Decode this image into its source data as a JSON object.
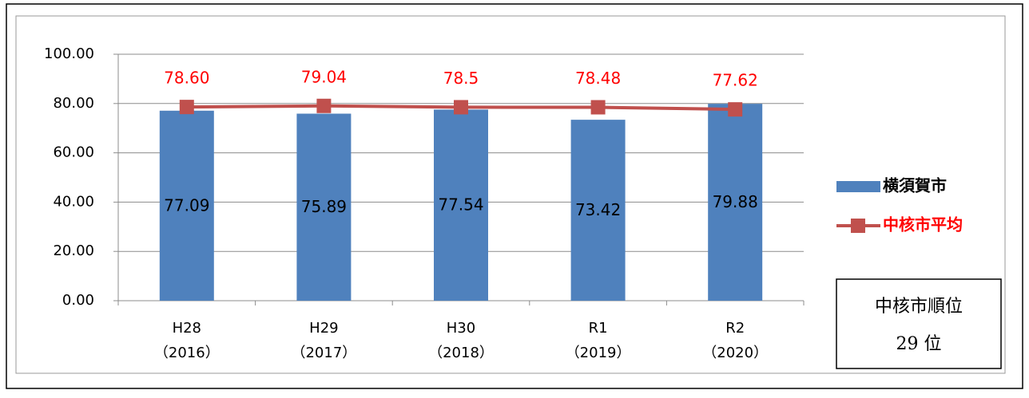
{
  "chart_data": {
    "type": "bar",
    "categories": [
      [
        "H28",
        "（2016）"
      ],
      [
        "H29",
        "（2017）"
      ],
      [
        "H30",
        "（2018）"
      ],
      [
        "R1",
        "（2019）"
      ],
      [
        "R2",
        "（2020）"
      ]
    ],
    "series": [
      {
        "name": "横須賀市",
        "type": "bar",
        "color": "#4f81bd",
        "values": [
          77.09,
          75.89,
          77.54,
          73.42,
          79.88
        ]
      },
      {
        "name": "中核市平均",
        "type": "line",
        "color": "#c0504d",
        "label_color": "#ff0000",
        "values": [
          78.6,
          79.04,
          78.5,
          78.48,
          77.62
        ],
        "value_labels": [
          "78.60",
          "79.04",
          "78.5",
          "78.48",
          "77.62"
        ]
      }
    ],
    "ylim": [
      0,
      100
    ],
    "yticks": [
      {
        "value": 0,
        "label": "0.00"
      },
      {
        "value": 20,
        "label": "20.00"
      },
      {
        "value": 40,
        "label": "40.00"
      },
      {
        "value": 60,
        "label": "60.00"
      },
      {
        "value": 80,
        "label": "80.00"
      },
      {
        "value": 100,
        "label": "100.00"
      }
    ],
    "grid": true,
    "legend": "right",
    "annotations": [
      "中核市順位",
      "29 位"
    ]
  }
}
